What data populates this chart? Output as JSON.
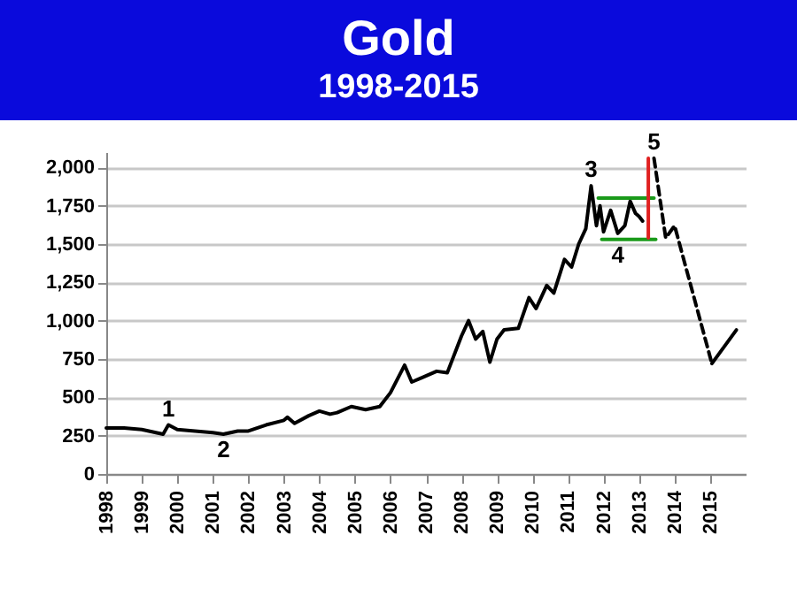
{
  "chart_data": {
    "type": "line",
    "title": "Gold",
    "subtitle": "1998-2015",
    "xlim": [
      1998,
      2016
    ],
    "xticks": [
      1998,
      1999,
      2000,
      2001,
      2002,
      2003,
      2004,
      2005,
      2006,
      2007,
      2008,
      2009,
      2010,
      2011,
      2012,
      2013,
      2014,
      2015
    ],
    "ylim": [
      0,
      2100
    ],
    "yticks": [
      0,
      {
        "value": 250,
        "label": "250"
      },
      {
        "value": 500,
        "label": "500"
      },
      {
        "value": 750,
        "label": "750"
      },
      {
        "value": 1000,
        "label": "1,000"
      },
      {
        "value": 1250,
        "label": "1,250"
      },
      {
        "value": 1500,
        "label": "1,500"
      },
      {
        "value": 1750,
        "label": "1,750"
      },
      {
        "value": 2000,
        "label": "2,000"
      }
    ],
    "grid": "y",
    "series": [
      {
        "color": "#000000",
        "line_style": "solid",
        "x": [
          1998,
          1998.5,
          1999,
          1999.6,
          1999.75,
          2000,
          2000.5,
          2001,
          2001.3,
          2001.7,
          2002,
          2002.5,
          2003,
          2003.1,
          2003.3,
          2003.7,
          2004,
          2004.3,
          2004.5,
          2004.9,
          2005.3,
          2005.7,
          2006,
          2006.4,
          2006.6,
          2006.9,
          2007.3,
          2007.6,
          2008,
          2008.2,
          2008.4,
          2008.6,
          2008.8,
          2009,
          2009.2,
          2009.6,
          2009.9,
          2010.1,
          2010.4,
          2010.6,
          2010.9,
          2011.1,
          2011.3,
          2011.5,
          2011.65,
          2011.8,
          2011.9,
          2012,
          2012.2,
          2012.4,
          2012.6,
          2012.75,
          2012.9,
          2013,
          2013.1
        ],
        "values": [
          300,
          300,
          290,
          260,
          320,
          290,
          280,
          270,
          260,
          280,
          280,
          320,
          350,
          370,
          330,
          380,
          410,
          390,
          400,
          440,
          420,
          440,
          530,
          710,
          600,
          630,
          670,
          660,
          900,
          1000,
          880,
          930,
          730,
          880,
          940,
          950,
          1150,
          1080,
          1230,
          1180,
          1400,
          1350,
          1500,
          1600,
          1880,
          1620,
          1750,
          1580,
          1720,
          1570,
          1620,
          1780,
          1700,
          1680,
          1650
        ]
      },
      {
        "color": "#1a9a1a",
        "line_style": "solid",
        "x": [
          2011.85,
          2013.42
        ],
        "values": [
          1800,
          1800
        ]
      },
      {
        "color": "#1a9a1a",
        "line_style": "solid",
        "x": [
          2011.95,
          2013.47
        ],
        "values": [
          1530,
          1530
        ]
      },
      {
        "color": "#e02020",
        "line_style": "solid",
        "x": [
          2013.26,
          2013.26
        ],
        "values": [
          1540,
          2060
        ]
      },
      {
        "color": "#000000",
        "line_style": "dashed",
        "x": [
          2013.42,
          2013.75,
          2014.0,
          2015.05
        ],
        "values": [
          2060,
          1540,
          1620,
          720
        ]
      },
      {
        "color": "#000000",
        "line_style": "solid",
        "x": [
          2015.05,
          2015.74
        ],
        "values": [
          720,
          940
        ]
      }
    ],
    "annotations": [
      {
        "text": "1",
        "x": 1999.75,
        "y": 320
      },
      {
        "text": "2",
        "x": 2001.3,
        "y": 260
      },
      {
        "text": "3",
        "x": 2011.65,
        "y": 1880
      },
      {
        "text": "4",
        "x": 2012.4,
        "y": 1530
      },
      {
        "text": "5",
        "x": 2013.42,
        "y": 2060
      }
    ]
  }
}
